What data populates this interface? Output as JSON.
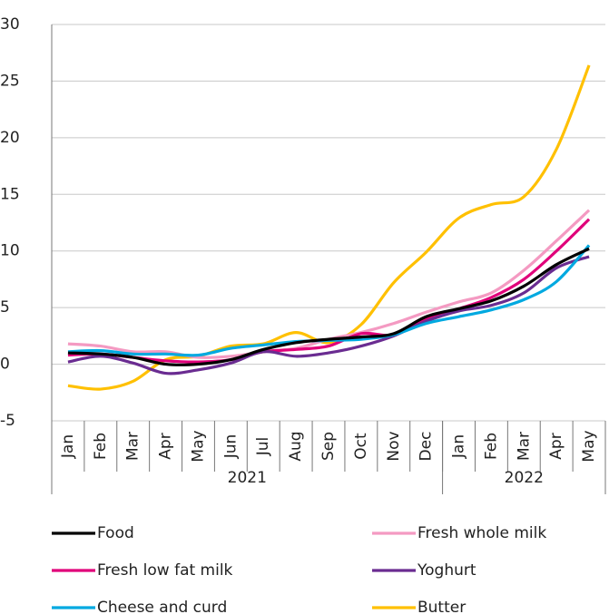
{
  "chart_data": {
    "type": "line",
    "categories": [
      "Jan",
      "Feb",
      "Mar",
      "Apr",
      "May",
      "Jun",
      "Jul",
      "Aug",
      "Sep",
      "Oct",
      "Nov",
      "Dec",
      "Jan",
      "Feb",
      "Mar",
      "Apr",
      "May"
    ],
    "year_groups": [
      {
        "label": "2021",
        "span": 12
      },
      {
        "label": "2022",
        "span": 5
      }
    ],
    "ylim": [
      -5,
      30
    ],
    "yticks": [
      -5,
      0,
      5,
      10,
      15,
      20,
      25,
      30
    ],
    "grid": true,
    "series": [
      {
        "name": "Food",
        "color": "#000000",
        "values": [
          1.0,
          0.9,
          0.6,
          0.0,
          0.0,
          0.4,
          1.3,
          1.9,
          2.2,
          2.4,
          2.7,
          4.2,
          4.9,
          5.6,
          6.9,
          8.8,
          10.2
        ]
      },
      {
        "name": "Fresh whole milk",
        "color": "#f49ac2",
        "values": [
          1.8,
          1.6,
          1.1,
          1.1,
          0.6,
          0.7,
          1.1,
          1.4,
          2.2,
          2.8,
          3.6,
          4.6,
          5.5,
          6.3,
          8.3,
          10.9,
          13.6
        ]
      },
      {
        "name": "Fresh low fat milk",
        "color": "#e0007a",
        "values": [
          0.8,
          0.9,
          0.6,
          0.3,
          0.2,
          0.4,
          1.1,
          1.3,
          1.6,
          2.7,
          2.6,
          4.0,
          4.9,
          5.9,
          7.5,
          10.0,
          12.8
        ]
      },
      {
        "name": "Yoghurt",
        "color": "#6a2c91",
        "values": [
          0.2,
          0.7,
          0.1,
          -0.8,
          -0.5,
          0.1,
          1.1,
          0.7,
          1.0,
          1.6,
          2.5,
          3.8,
          4.7,
          5.2,
          6.3,
          8.5,
          9.5
        ]
      },
      {
        "name": "Cheese and curd",
        "color": "#00a9e0",
        "values": [
          1.1,
          1.2,
          0.9,
          0.9,
          0.8,
          1.4,
          1.7,
          2.0,
          2.1,
          2.2,
          2.6,
          3.6,
          4.2,
          4.8,
          5.7,
          7.3,
          10.5
        ]
      },
      {
        "name": "Butter",
        "color": "#ffc000",
        "values": [
          -1.9,
          -2.2,
          -1.5,
          0.4,
          0.7,
          1.6,
          1.8,
          2.8,
          1.9,
          3.5,
          7.2,
          9.9,
          12.9,
          14.1,
          14.8,
          19.0,
          26.4
        ]
      }
    ]
  }
}
